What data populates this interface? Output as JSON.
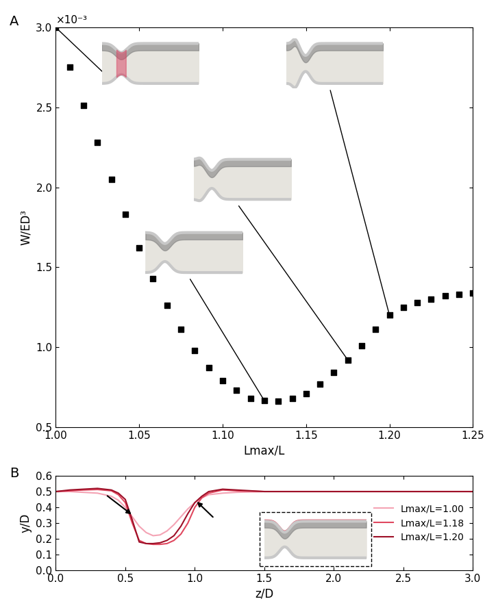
{
  "chart_data": [
    {
      "type": "scatter",
      "title": "A",
      "x_label": "Lmax/L",
      "y_label": "W/ED³",
      "annotations": [
        "×10⁻³"
      ],
      "x": [
        1.0,
        1.0083,
        1.0167,
        1.025,
        1.0333,
        1.0417,
        1.05,
        1.0583,
        1.0667,
        1.075,
        1.0833,
        1.0917,
        1.1,
        1.1083,
        1.1167,
        1.125,
        1.1333,
        1.1417,
        1.15,
        1.1583,
        1.1667,
        1.175,
        1.1833,
        1.1917,
        1.2,
        1.2083,
        1.2167,
        1.225,
        1.2333,
        1.2417,
        1.25
      ],
      "values": [
        3.0,
        2.75,
        2.51,
        2.28,
        2.05,
        1.83,
        1.62,
        1.43,
        1.26,
        1.11,
        0.98,
        0.87,
        0.79,
        0.73,
        0.68,
        0.665,
        0.66,
        0.68,
        0.71,
        0.77,
        0.84,
        0.92,
        1.01,
        1.11,
        1.2,
        1.25,
        1.28,
        1.3,
        1.32,
        1.33,
        1.34
      ],
      "color": "#000000",
      "marker": "square",
      "xlim": [
        1.0,
        1.25
      ],
      "xticks": [
        {
          "value": 1.0,
          "label": "1.00"
        },
        {
          "value": 1.05,
          "label": "1.05"
        },
        {
          "value": 1.1,
          "label": "1.10"
        },
        {
          "value": 1.15,
          "label": "1.15"
        },
        {
          "value": 1.2,
          "label": "1.20"
        },
        {
          "value": 1.25,
          "label": "1.25"
        }
      ],
      "ylim": [
        0.5,
        3.0
      ],
      "yticks": [
        0.5,
        {
          "value": 1.0,
          "label": "1.0"
        },
        1.5,
        {
          "value": 2.0,
          "label": "2.0"
        },
        2.5,
        {
          "value": 3.0,
          "label": "3.0"
        }
      ],
      "grid": false
    },
    {
      "type": "line",
      "title": "B",
      "x_label": "z/D",
      "y_label": "y/D",
      "x": [
        0.0,
        0.1,
        0.2,
        0.3,
        0.4,
        0.45,
        0.5,
        0.55,
        0.6,
        0.65,
        0.7,
        0.75,
        0.8,
        0.85,
        0.9,
        0.95,
        1.0,
        1.05,
        1.1,
        1.2,
        1.3,
        1.5,
        2.0,
        2.5,
        3.0
      ],
      "series": [
        {
          "name": "Lmax/L=1.00",
          "color": "#f4a3b4",
          "line_style": "solid",
          "values": [
            0.5,
            0.5,
            0.495,
            0.49,
            0.47,
            0.445,
            0.4,
            0.34,
            0.28,
            0.24,
            0.22,
            0.225,
            0.25,
            0.29,
            0.34,
            0.39,
            0.43,
            0.46,
            0.48,
            0.49,
            0.495,
            0.5,
            0.5,
            0.5,
            0.5
          ]
        },
        {
          "name": "Lmax/L=1.18",
          "color": "#e0485f",
          "line_style": "solid",
          "values": [
            0.5,
            0.505,
            0.51,
            0.513,
            0.505,
            0.48,
            0.43,
            0.3,
            0.19,
            0.17,
            0.165,
            0.165,
            0.17,
            0.19,
            0.23,
            0.3,
            0.4,
            0.46,
            0.49,
            0.51,
            0.505,
            0.5,
            0.5,
            0.5,
            0.5
          ]
        },
        {
          "name": "Lmax/L=1.20",
          "color": "#9e1028",
          "line_style": "solid",
          "values": [
            0.5,
            0.51,
            0.515,
            0.52,
            0.51,
            0.49,
            0.45,
            0.32,
            0.18,
            0.17,
            0.17,
            0.175,
            0.19,
            0.22,
            0.28,
            0.36,
            0.43,
            0.47,
            0.5,
            0.515,
            0.51,
            0.5,
            0.5,
            0.5,
            0.5
          ]
        }
      ],
      "xlim": [
        0.0,
        3.0
      ],
      "xticks": [
        {
          "value": 0.0,
          "label": "0.0"
        },
        0.5,
        {
          "value": 1.0,
          "label": "1.0"
        },
        1.5,
        {
          "value": 2.0,
          "label": "2.0"
        },
        2.5,
        {
          "value": 3.0,
          "label": "3.0"
        }
      ],
      "ylim": [
        0.0,
        0.6
      ],
      "yticks": [
        {
          "value": 0.0,
          "label": "0.0"
        },
        0.1,
        0.2,
        0.3,
        0.4,
        0.5,
        0.6
      ],
      "legend": "center right",
      "grid": false
    }
  ]
}
